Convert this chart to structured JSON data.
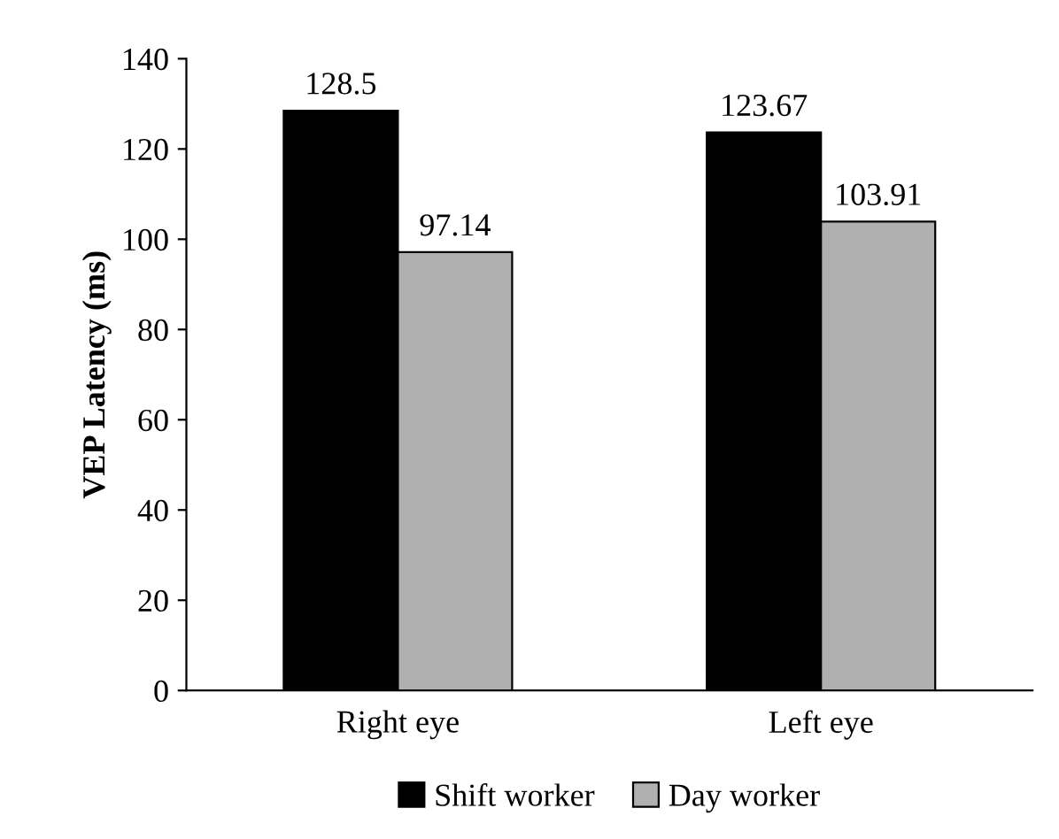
{
  "chart_data": {
    "type": "bar",
    "ylabel": "VEP Latency (ms)",
    "categories": [
      "Right eye",
      "Left eye"
    ],
    "series": [
      {
        "name": "Shift worker",
        "color": "#000000",
        "values": [
          128.5,
          123.67
        ]
      },
      {
        "name": "Day worker",
        "color": "#b0b0b0",
        "values": [
          97.14,
          103.91
        ]
      }
    ],
    "ylim": [
      0,
      140
    ],
    "yticks": [
      0,
      20,
      40,
      60,
      80,
      100,
      120,
      140
    ],
    "data_labels": true,
    "legend": "bottom",
    "grid": false
  }
}
